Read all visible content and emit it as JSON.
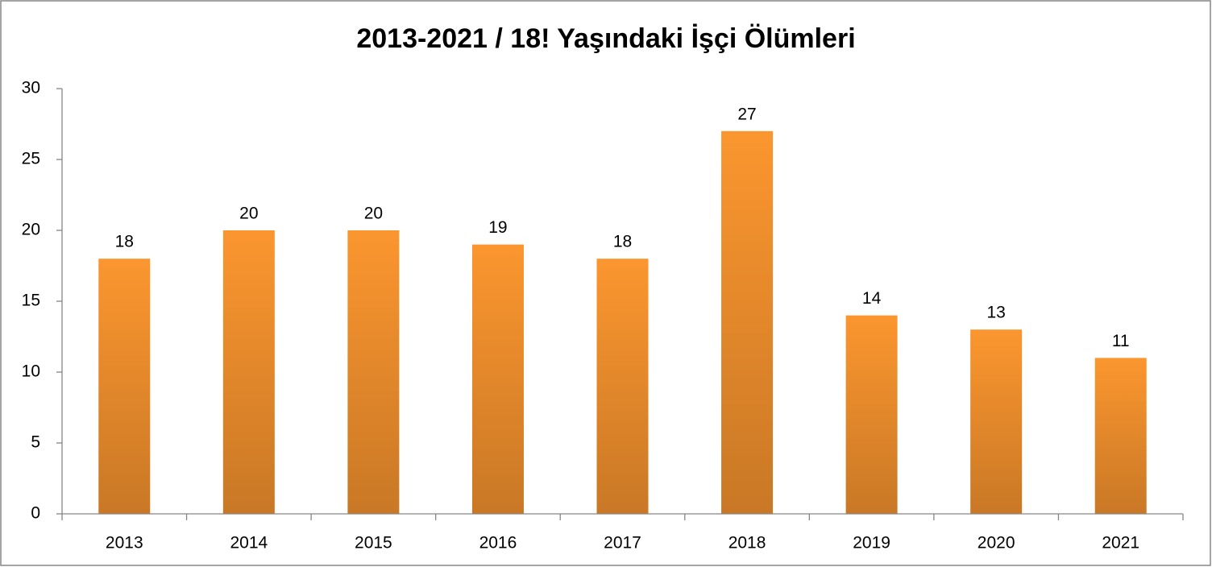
{
  "chart_data": {
    "type": "bar",
    "title": "2013-2021 / 18! Yaşındaki İşçi Ölümleri",
    "categories": [
      "2013",
      "2014",
      "2015",
      "2016",
      "2017",
      "2018",
      "2019",
      "2020",
      "2021"
    ],
    "values": [
      18,
      20,
      20,
      19,
      18,
      27,
      14,
      13,
      11
    ],
    "color": "#fb962f",
    "ylim": [
      0,
      30
    ],
    "yticks": [
      0,
      5,
      10,
      15,
      20,
      25,
      30
    ],
    "grid": false
  }
}
